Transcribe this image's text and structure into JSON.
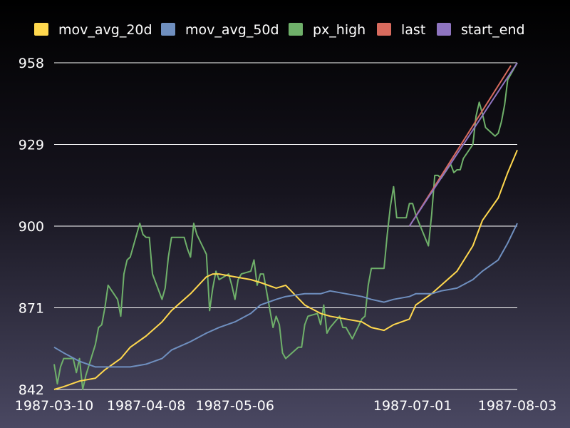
{
  "chart_data": {
    "type": "line",
    "title": "",
    "xlabel": "",
    "ylabel": "",
    "x_tick_labels": [
      "1987-03-10",
      "1987-04-08",
      "1987-05-06",
      "1987-07-01",
      "1987-08-03"
    ],
    "y_tick_labels": [
      "842",
      "871",
      "900",
      "929",
      "958"
    ],
    "ylim": [
      842,
      958
    ],
    "xlim": [
      "1987-03-10",
      "1987-08-03"
    ],
    "grid": "horizontal",
    "legend_position": "top",
    "colors": {
      "mov_avg_20d": "#ffd84e",
      "mov_avg_50d": "#6f8fbf",
      "px_high": "#6fb06a",
      "last": "#d86b5e",
      "start_end": "#8e74c0"
    },
    "series": [
      {
        "name": "px_high",
        "x": [
          "1987-03-10",
          "1987-03-11",
          "1987-03-12",
          "1987-03-13",
          "1987-03-16",
          "1987-03-17",
          "1987-03-18",
          "1987-03-19",
          "1987-03-20",
          "1987-03-23",
          "1987-03-24",
          "1987-03-25",
          "1987-03-26",
          "1987-03-27",
          "1987-03-30",
          "1987-03-31",
          "1987-04-01",
          "1987-04-02",
          "1987-04-03",
          "1987-04-06",
          "1987-04-07",
          "1987-04-08",
          "1987-04-09",
          "1987-04-10",
          "1987-04-13",
          "1987-04-14",
          "1987-04-15",
          "1987-04-16",
          "1987-04-20",
          "1987-04-21",
          "1987-04-22",
          "1987-04-23",
          "1987-04-24",
          "1987-04-27",
          "1987-04-28",
          "1987-04-29",
          "1987-04-30",
          "1987-05-01",
          "1987-05-04",
          "1987-05-05",
          "1987-05-06",
          "1987-05-07",
          "1987-05-08",
          "1987-05-11",
          "1987-05-12",
          "1987-05-13",
          "1987-05-14",
          "1987-05-15",
          "1987-05-18",
          "1987-05-19",
          "1987-05-20",
          "1987-05-21",
          "1987-05-22",
          "1987-05-26",
          "1987-05-27",
          "1987-05-28",
          "1987-05-29",
          "1987-06-01",
          "1987-06-02",
          "1987-06-03",
          "1987-06-04",
          "1987-06-05",
          "1987-06-08",
          "1987-06-09",
          "1987-06-10",
          "1987-06-11",
          "1987-06-12",
          "1987-06-15",
          "1987-06-16",
          "1987-06-17",
          "1987-06-18",
          "1987-06-19",
          "1987-06-22",
          "1987-06-23",
          "1987-06-24",
          "1987-06-25",
          "1987-06-26",
          "1987-06-29",
          "1987-06-30",
          "1987-07-01",
          "1987-07-02",
          "1987-07-06",
          "1987-07-07",
          "1987-07-08",
          "1987-07-09",
          "1987-07-10",
          "1987-07-13",
          "1987-07-14",
          "1987-07-15",
          "1987-07-16",
          "1987-07-17",
          "1987-07-20",
          "1987-07-21",
          "1987-07-22",
          "1987-07-23",
          "1987-07-24",
          "1987-07-27",
          "1987-07-28",
          "1987-07-29",
          "1987-07-30",
          "1987-07-31",
          "1987-08-03"
        ],
        "values": [
          851,
          844,
          850,
          853,
          853,
          848,
          853,
          842,
          847,
          858,
          864,
          865,
          871,
          879,
          874,
          868,
          883,
          888,
          889,
          901,
          897,
          896,
          896,
          883,
          874,
          878,
          889,
          896,
          896,
          892,
          889,
          901,
          897,
          890,
          870,
          878,
          884,
          881,
          883,
          879,
          874,
          881,
          883,
          884,
          888,
          879,
          883,
          883,
          864,
          868,
          865,
          855,
          853,
          857,
          857,
          865,
          868,
          869,
          865,
          872,
          862,
          864,
          868,
          864,
          864,
          862,
          860,
          867,
          868,
          879,
          885,
          885,
          885,
          897,
          907,
          914,
          903,
          903,
          908,
          908,
          904,
          893,
          904,
          918,
          918,
          917,
          922,
          919,
          920,
          920,
          924,
          929,
          939,
          944,
          940,
          935,
          932,
          933,
          937,
          943,
          952,
          958
        ]
      },
      {
        "name": "mov_avg_20d",
        "x": [
          "1987-03-10",
          "1987-03-13",
          "1987-03-18",
          "1987-03-23",
          "1987-03-26",
          "1987-03-31",
          "1987-04-03",
          "1987-04-08",
          "1987-04-13",
          "1987-04-16",
          "1987-04-22",
          "1987-04-27",
          "1987-04-29",
          "1987-05-01",
          "1987-05-06",
          "1987-05-11",
          "1987-05-14",
          "1987-05-19",
          "1987-05-22",
          "1987-05-28",
          "1987-06-02",
          "1987-06-05",
          "1987-06-10",
          "1987-06-15",
          "1987-06-18",
          "1987-06-22",
          "1987-06-25",
          "1987-06-30",
          "1987-07-02",
          "1987-07-07",
          "1987-07-10",
          "1987-07-15",
          "1987-07-20",
          "1987-07-23",
          "1987-07-28",
          "1987-07-31",
          "1987-08-03"
        ],
        "values": [
          842,
          843,
          845,
          846,
          849,
          853,
          857,
          861,
          866,
          870,
          876,
          882,
          883,
          883,
          882,
          881,
          880,
          878,
          879,
          872,
          869,
          868,
          867,
          866,
          864,
          863,
          865,
          867,
          872,
          876,
          879,
          884,
          893,
          902,
          910,
          919,
          927
        ]
      },
      {
        "name": "mov_avg_50d",
        "x": [
          "1987-03-10",
          "1987-03-13",
          "1987-03-18",
          "1987-03-23",
          "1987-03-26",
          "1987-03-31",
          "1987-04-03",
          "1987-04-08",
          "1987-04-13",
          "1987-04-16",
          "1987-04-22",
          "1987-04-27",
          "1987-05-01",
          "1987-05-06",
          "1987-05-11",
          "1987-05-14",
          "1987-05-19",
          "1987-05-22",
          "1987-05-28",
          "1987-06-02",
          "1987-06-05",
          "1987-06-10",
          "1987-06-15",
          "1987-06-18",
          "1987-06-22",
          "1987-06-25",
          "1987-06-30",
          "1987-07-02",
          "1987-07-07",
          "1987-07-10",
          "1987-07-15",
          "1987-07-20",
          "1987-07-23",
          "1987-07-28",
          "1987-07-31",
          "1987-08-03"
        ],
        "values": [
          857,
          855,
          852,
          850,
          850,
          850,
          850,
          851,
          853,
          856,
          859,
          862,
          864,
          866,
          869,
          872,
          874,
          875,
          876,
          876,
          877,
          876,
          875,
          874,
          873,
          874,
          875,
          876,
          876,
          877,
          878,
          881,
          884,
          888,
          894,
          901
        ]
      },
      {
        "name": "last",
        "x": [
          "1987-06-30",
          "1987-08-01"
        ],
        "values": [
          900,
          957
        ]
      },
      {
        "name": "start_end",
        "x": [
          "1987-06-30",
          "1987-08-03"
        ],
        "values": [
          900,
          958
        ]
      }
    ]
  }
}
